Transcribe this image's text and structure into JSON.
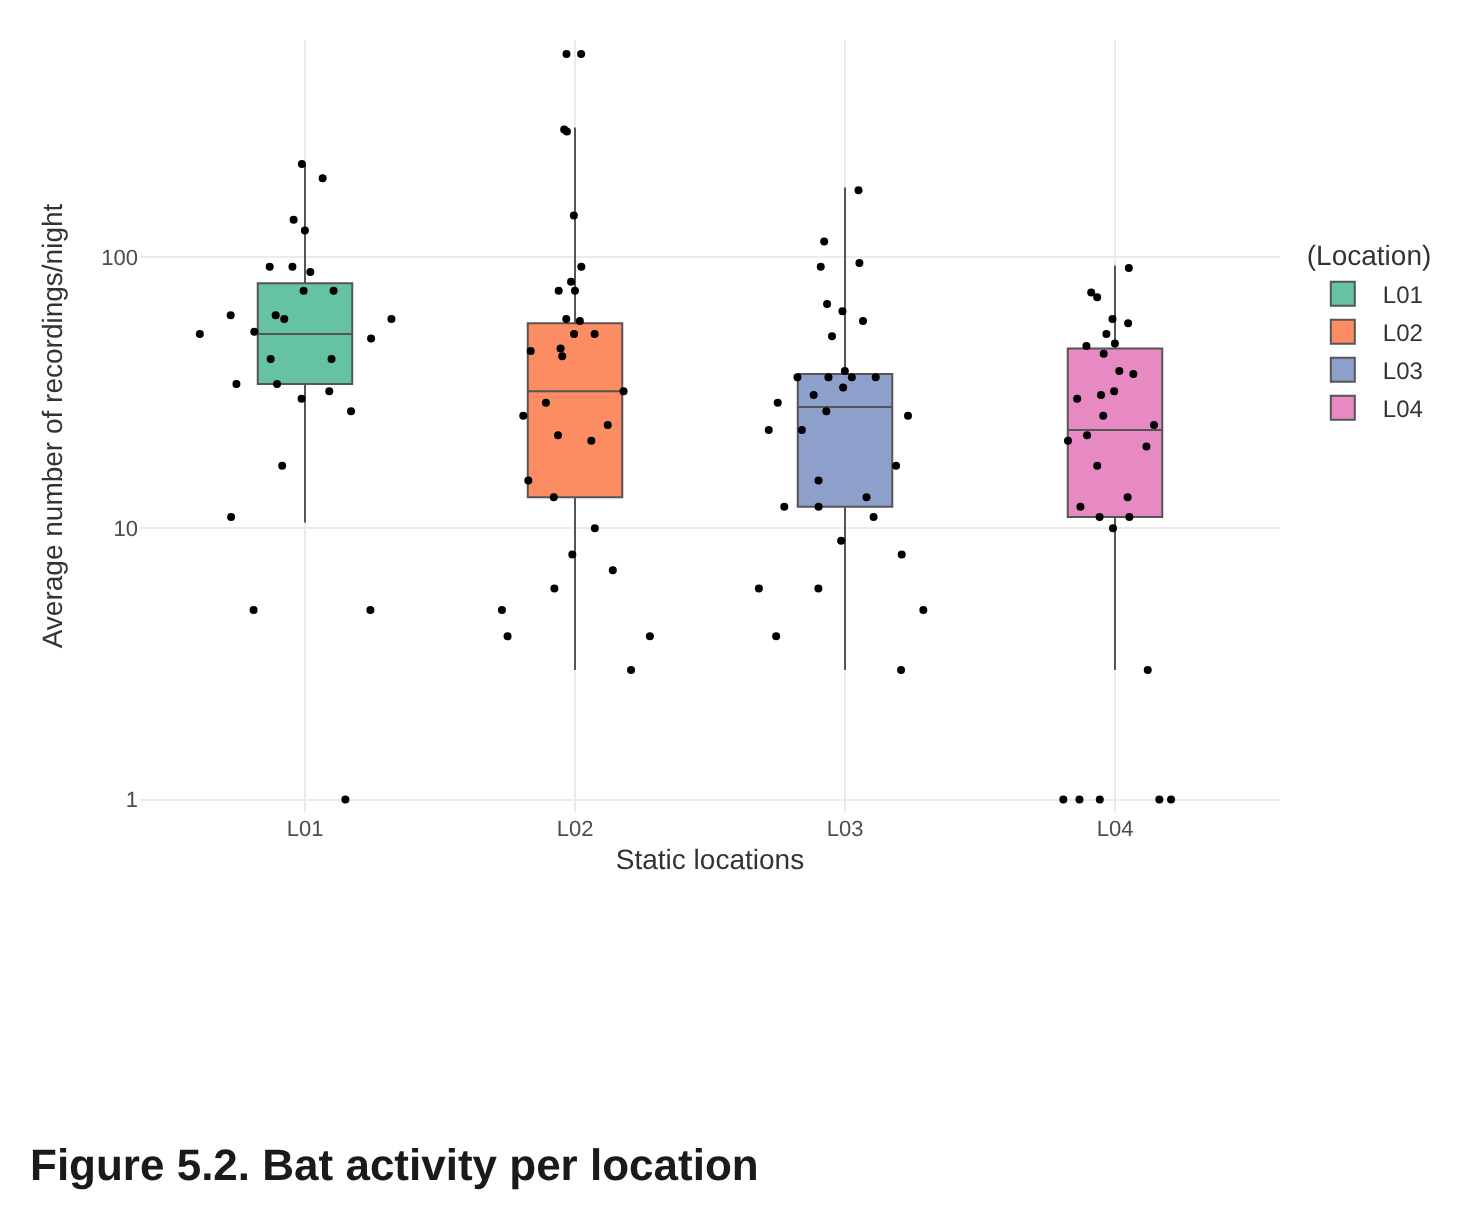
{
  "chart_data": {
    "type": "box",
    "xlabel": "Static locations",
    "ylabel": "Average number of recordings/night",
    "legend_title": "(Location)",
    "categories": [
      "L01",
      "L02",
      "L03",
      "L04"
    ],
    "series": [
      {
        "name": "L01",
        "color": "#66c2a5",
        "boxes": [
          {
            "low": 10.5,
            "q1": 34,
            "median": 52,
            "q3": 80,
            "high": 220
          },
          null,
          null,
          null
        ]
      },
      {
        "name": "L02",
        "color": "#fc8d62",
        "boxes": [
          null,
          {
            "low": 3,
            "q1": 13,
            "median": 32,
            "q3": 57,
            "high": 300
          },
          null,
          null
        ]
      },
      {
        "name": "L03",
        "color": "#8da0cb",
        "boxes": [
          null,
          null,
          {
            "low": 3,
            "q1": 12,
            "median": 28,
            "q3": 37,
            "high": 180
          },
          null
        ]
      },
      {
        "name": "L04",
        "color": "#e78ac3",
        "boxes": [
          null,
          null,
          null,
          {
            "low": 3,
            "q1": 11,
            "median": 23,
            "q3": 46,
            "high": 93
          }
        ]
      },
      {
        "type": "scatter",
        "color": "#000000",
        "x": [
          "L01",
          "L01",
          "L01",
          "L01",
          "L01",
          "L01",
          "L01",
          "L01",
          "L01",
          "L01",
          "L01",
          "L01",
          "L01",
          "L01",
          "L01",
          "L01",
          "L01",
          "L01",
          "L01",
          "L01",
          "L01",
          "L01",
          "L01",
          "L01",
          "L01",
          "L01",
          "L01",
          "L01"
        ],
        "values": [
          220,
          195,
          137,
          125,
          92,
          92,
          88,
          75,
          75,
          61,
          61,
          59,
          59,
          52,
          53,
          50,
          42,
          42,
          34,
          34,
          32,
          30,
          27,
          17,
          11,
          5,
          5,
          1
        ]
      },
      {
        "type": "scatter",
        "color": "#000000",
        "x": [
          "L02",
          "L02",
          "L02",
          "L02",
          "L02",
          "L02",
          "L02",
          "L02",
          "L02",
          "L02",
          "L02",
          "L02",
          "L02",
          "L02",
          "L02",
          "L02",
          "L02",
          "L02",
          "L02",
          "L02",
          "L02",
          "L02",
          "L02",
          "L02",
          "L02",
          "L02",
          "L02",
          "L02",
          "L02",
          "L02",
          "L02",
          "L02"
        ],
        "values": [
          560,
          560,
          290,
          295,
          142,
          92,
          81,
          75,
          75,
          58,
          59,
          52,
          52,
          46,
          45,
          43,
          32,
          29,
          26,
          24,
          22,
          21,
          15,
          13,
          10,
          8,
          7,
          6,
          5,
          4,
          4,
          3
        ]
      },
      {
        "type": "scatter",
        "color": "#000000",
        "x": [
          "L03",
          "L03",
          "L03",
          "L03",
          "L03",
          "L03",
          "L03",
          "L03",
          "L03",
          "L03",
          "L03",
          "L03",
          "L03",
          "L03",
          "L03",
          "L03",
          "L03",
          "L03",
          "L03",
          "L03",
          "L03",
          "L03",
          "L03",
          "L03",
          "L03",
          "L03",
          "L03",
          "L03",
          "L03",
          "L03",
          "L03",
          "L03",
          "L03"
        ],
        "values": [
          176,
          114,
          95,
          92,
          67,
          63,
          58,
          51,
          38,
          36,
          36,
          36,
          36,
          33,
          31,
          29,
          27,
          26,
          23,
          23,
          17,
          15,
          13,
          12,
          12,
          11,
          9,
          8,
          6,
          6,
          5,
          4,
          3
        ]
      },
      {
        "type": "scatter",
        "color": "#000000",
        "x": [
          "L04",
          "L04",
          "L04",
          "L04",
          "L04",
          "L04",
          "L04",
          "L04",
          "L04",
          "L04",
          "L04",
          "L04",
          "L04",
          "L04",
          "L04",
          "L04",
          "L04",
          "L04",
          "L04",
          "L04",
          "L04",
          "L04",
          "L04",
          "L04",
          "L04",
          "L04",
          "L04",
          "L04",
          "L04",
          "L04",
          "L04"
        ],
        "values": [
          91,
          74,
          71,
          59,
          57,
          52,
          48,
          47,
          44,
          38,
          37,
          32,
          31,
          30,
          26,
          24,
          22,
          21,
          20,
          17,
          13,
          12,
          11,
          11,
          10,
          3,
          1,
          1,
          1,
          1,
          1
        ]
      }
    ],
    "log": "y",
    "ylim": [
      0.9,
      630
    ],
    "yticks": [
      1,
      10,
      100
    ],
    "grid": true,
    "legend": "right",
    "marker": "circle",
    "annotations": [
      "Figure 5.2. Bat activity per location"
    ]
  }
}
